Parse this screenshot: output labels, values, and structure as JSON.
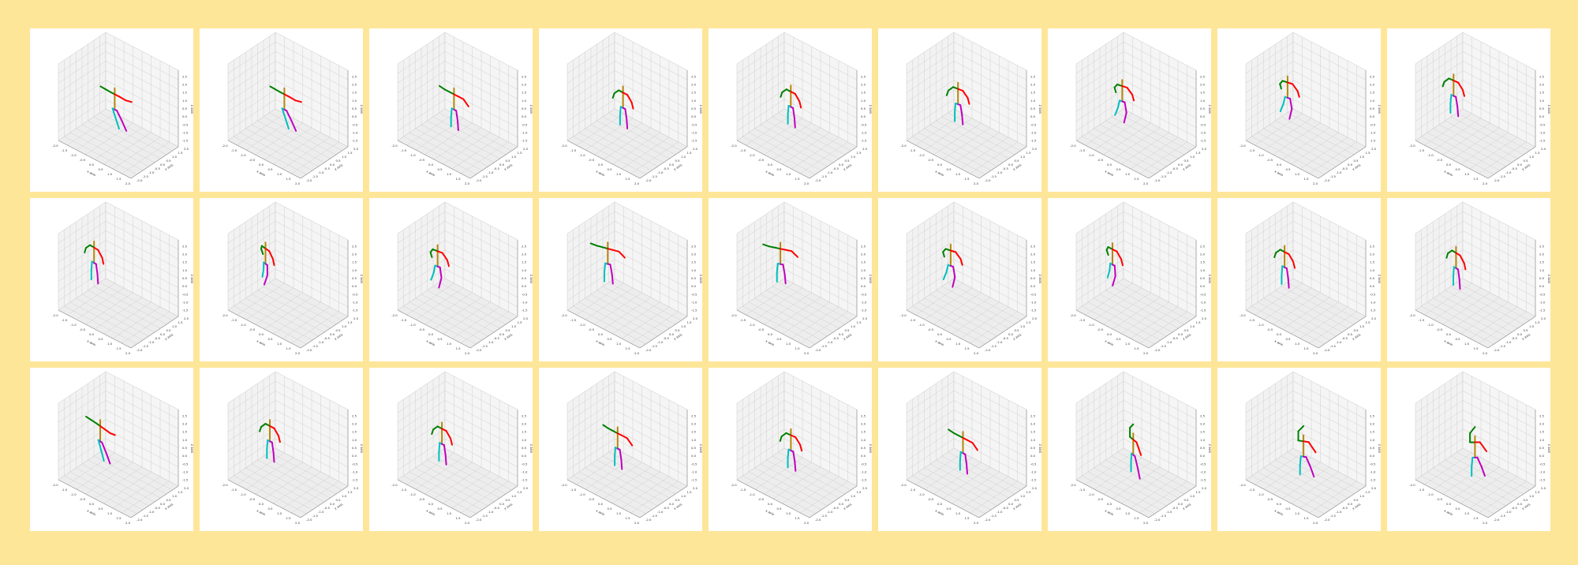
{
  "colors": {
    "background": "#fee699",
    "panel": "#ffffff",
    "pane_fill": "#f2f2f2",
    "grid": "#d0d0d0",
    "left_arm": "#008000",
    "right_arm": "#ff0000",
    "torso": "#b8860b",
    "left_leg": "#00bfbf",
    "right_leg": "#bf00bf"
  },
  "axes": {
    "x_label": "x axis",
    "y_label": "y axis",
    "z_label": "z axis",
    "x_ticks": [
      "-2.0",
      "-1.5",
      "-1.0",
      "-0.5",
      "0.0",
      "0.5",
      "1.0",
      "1.5",
      "2.0"
    ],
    "y_ticks": [
      "-2.0",
      "-1.5",
      "-1.0",
      "-0.5",
      "0.0",
      "0.5",
      "1.0",
      "1.5",
      "2.0"
    ],
    "z_ticks": [
      "-1.5",
      "-1.0",
      "-0.5",
      "0.0",
      "0.5",
      "1.0",
      "1.5",
      "2.0",
      "2.5"
    ],
    "xlim": [
      -2.0,
      2.0
    ],
    "ylim": [
      -2.0,
      2.0
    ],
    "zlim": [
      -1.5,
      2.5
    ]
  },
  "chart_data": {
    "type": "scatter",
    "grid": true,
    "rows": 3,
    "columns": 9,
    "frames": [
      {
        "x": -0.2,
        "y": 0.0,
        "pose": "lean-right",
        "ang": 0
      },
      {
        "x": -0.2,
        "y": 0.0,
        "pose": "lean-right",
        "ang": 0
      },
      {
        "x": -0.2,
        "y": 0.0,
        "pose": "arms-out",
        "ang": 0
      },
      {
        "x": -0.3,
        "y": 0.1,
        "pose": "stand",
        "ang": 0
      },
      {
        "x": -0.4,
        "y": 0.1,
        "pose": "stand",
        "ang": 0
      },
      {
        "x": -0.6,
        "y": 0.2,
        "pose": "stand",
        "ang": 0.2
      },
      {
        "x": -0.9,
        "y": 0.2,
        "pose": "walk",
        "ang": 0.3
      },
      {
        "x": -1.2,
        "y": 0.3,
        "pose": "walk",
        "ang": 0.3
      },
      {
        "x": -1.4,
        "y": 0.3,
        "pose": "stand",
        "ang": 0.1
      },
      {
        "x": -1.6,
        "y": 0.4,
        "pose": "stand",
        "ang": -0.1
      },
      {
        "x": -1.5,
        "y": 0.4,
        "pose": "walk",
        "ang": -0.2
      },
      {
        "x": -1.3,
        "y": 0.3,
        "pose": "walk",
        "ang": 0.2
      },
      {
        "x": -1.4,
        "y": 0.5,
        "pose": "arms-out",
        "ang": 0.4
      },
      {
        "x": -1.3,
        "y": 0.6,
        "pose": "arms-out",
        "ang": 0.5
      },
      {
        "x": -1.2,
        "y": 0.5,
        "pose": "walk",
        "ang": 0.3
      },
      {
        "x": -1.5,
        "y": 0.3,
        "pose": "walk",
        "ang": 0
      },
      {
        "x": -1.3,
        "y": 0.2,
        "pose": "stand",
        "ang": 0
      },
      {
        "x": -1.2,
        "y": 0.2,
        "pose": "stand",
        "ang": -0.1
      },
      {
        "x": -1.0,
        "y": 0.0,
        "pose": "lean-right",
        "ang": -0.2
      },
      {
        "x": -1.0,
        "y": 0.0,
        "pose": "stand",
        "ang": 0
      },
      {
        "x": -0.8,
        "y": -0.1,
        "pose": "stand",
        "ang": 0
      },
      {
        "x": -0.4,
        "y": -0.2,
        "pose": "arms-out",
        "ang": 0
      },
      {
        "x": -0.2,
        "y": -0.2,
        "pose": "stand",
        "ang": 0.1
      },
      {
        "x": 0.0,
        "y": -0.3,
        "pose": "arms-out",
        "ang": 0
      },
      {
        "x": 0.1,
        "y": -0.4,
        "pose": "reach",
        "ang": -0.3
      },
      {
        "x": 0.2,
        "y": -0.5,
        "pose": "reach",
        "ang": 0.6
      },
      {
        "x": 0.3,
        "y": -0.5,
        "pose": "reach",
        "ang": 0.9
      }
    ]
  }
}
